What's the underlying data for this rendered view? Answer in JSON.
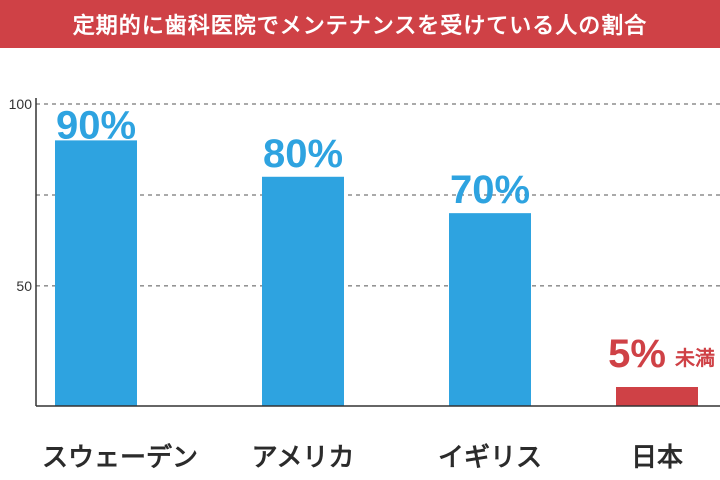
{
  "colors": {
    "title_bg": "#cf4146",
    "bar_default": "#2ea3e0",
    "bar_highlight": "#cf4146",
    "grid": "#555555",
    "axis": "#333333"
  },
  "chart_data": {
    "type": "bar",
    "title": "定期的に歯科医院でメンテナンスを受けている人の割合",
    "xlabel": "",
    "ylabel": "",
    "ylim": [
      17,
      100
    ],
    "yticks": [
      50,
      100
    ],
    "grid_lines": [
      50,
      75,
      100
    ],
    "grid": "dashed horizontal",
    "legend": "none",
    "categories": [
      "スウェーデン",
      "アメリカ",
      "イギリス",
      "日本"
    ],
    "values": [
      90,
      80,
      70,
      5
    ],
    "data_labels": [
      "90%",
      "80%",
      "70%",
      "5%"
    ],
    "data_label_suffixes": [
      "",
      "",
      "",
      "未満"
    ],
    "highlight_index": 3
  }
}
